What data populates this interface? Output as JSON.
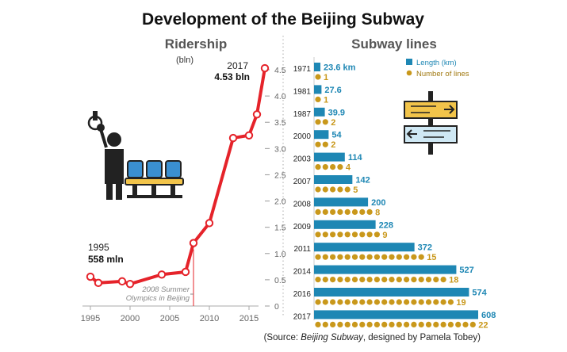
{
  "title": "Development of the Beijing Subway",
  "source_prefix": "(Source: ",
  "source_italic": "Beijing Subway",
  "source_suffix": ", designed by Pamela Tobey)",
  "colors": {
    "ridership_line": "#e5232a",
    "length_bar": "#1e87b4",
    "lines_dot": "#c9981b",
    "text": "#222222",
    "axis": "#aaaaaa",
    "panel_title": "#555555"
  },
  "icons": [
    "commuter-holding-strap-icon",
    "subway-seats-icon",
    "direction-sign-icon"
  ],
  "chart_data": [
    {
      "type": "line",
      "title": "Ridership",
      "ylabel": "(bln)",
      "xlim": [
        1994,
        2018
      ],
      "ylim": [
        0,
        4.5
      ],
      "x_ticks": [
        1995,
        2000,
        2005,
        2010,
        2015
      ],
      "y_ticks": [
        0,
        0.5,
        1.0,
        1.5,
        2.0,
        2.5,
        3.0,
        3.5,
        4.0,
        4.5
      ],
      "y_tick_labels": [
        "0",
        "0.5",
        "1.0",
        "1.5",
        "2.0",
        "2.5",
        "3.0",
        "3.5",
        "4.0",
        "4.5"
      ],
      "grid": false,
      "series": [
        {
          "x": [
            1995,
            1996,
            1999,
            2000,
            2004,
            2007,
            2008,
            2010,
            2013,
            2015,
            2016,
            2017
          ],
          "y": [
            0.558,
            0.44,
            0.47,
            0.42,
            0.6,
            0.65,
            1.2,
            1.58,
            3.2,
            3.25,
            3.65,
            4.53
          ]
        }
      ],
      "annotations": {
        "start_year": "1995",
        "start_value": "558 mln",
        "end_year": "2017",
        "end_value": "4.53 bln",
        "event_x": 2008,
        "event_text": "2008 Summer Olympics in Beijing"
      }
    },
    {
      "type": "bar",
      "title": "Subway lines",
      "legend": [
        "Length (km)",
        "Number of lines"
      ],
      "legend_position": "top-right",
      "categories": [
        "1971",
        "1981",
        "1987",
        "2000",
        "2003",
        "2007",
        "2008",
        "2009",
        "2011",
        "2014",
        "2016",
        "2017"
      ],
      "series": [
        {
          "name": "Length (km)",
          "values": [
            23.6,
            27.6,
            39.9,
            54,
            114,
            142,
            200,
            228,
            372,
            527,
            574,
            608
          ],
          "labels": [
            "23.6 km",
            "27.6",
            "39.9",
            "54",
            "114",
            "142",
            "200",
            "228",
            "372",
            "527",
            "574",
            "608"
          ]
        },
        {
          "name": "Number of lines",
          "values": [
            1,
            1,
            2,
            2,
            4,
            5,
            8,
            9,
            15,
            18,
            19,
            22
          ],
          "labels": [
            "1",
            "1",
            "2",
            "2",
            "4",
            "5",
            "8",
            "9",
            "15",
            "18",
            "19",
            "22"
          ]
        }
      ]
    }
  ]
}
